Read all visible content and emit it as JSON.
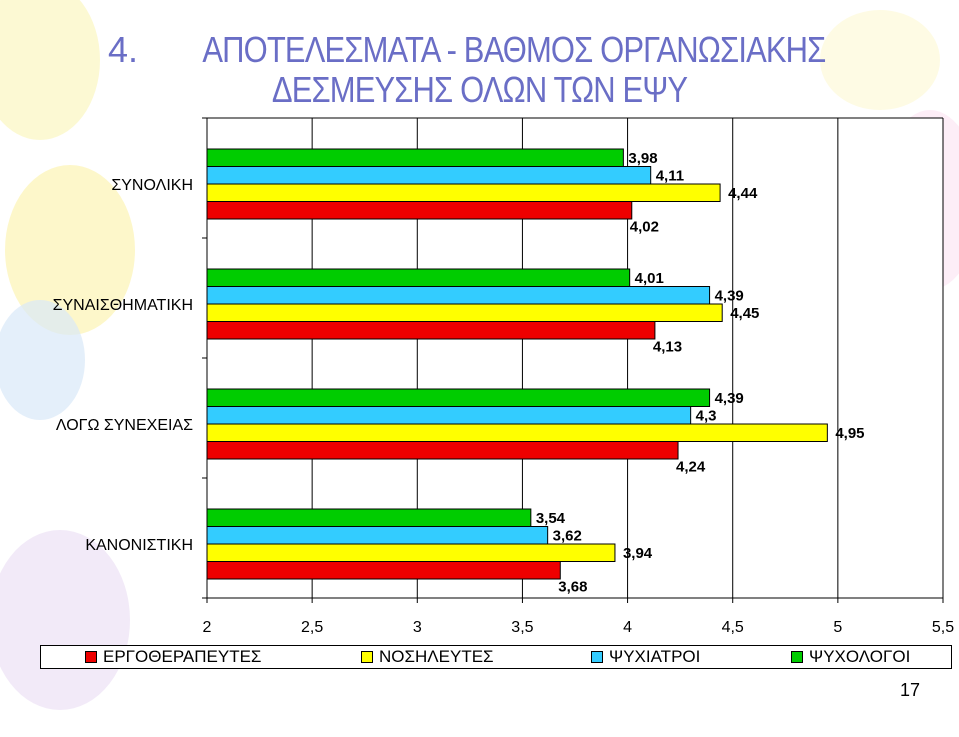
{
  "slide": {
    "title_number": "4.",
    "title_line1": "ΑΠΟΤΕΛΕΣΜΑΤΑ - ΒΑΘΜΟΣ ΟΡΓΑΝΩΣΙΑΚΗΣ",
    "title_line2": "ΔΕΣΜΕΥΣΗΣ ΟΛΩΝ ΤΩΝ ΕΨΥ",
    "page_number": "17"
  },
  "chart_data": {
    "type": "bar",
    "orientation": "horizontal",
    "categories": [
      "ΣΥΝΟΛΙΚΗ",
      "ΣΥΝΑΙΣΘΗΜΑΤΙΚΗ",
      "ΛΟΓΩ ΣΥΝΕΧΕΙΑΣ",
      "ΚΑΝΟΝΙΣΤΙΚΗ"
    ],
    "series": [
      {
        "name": "ΨΥΧΟΛΟΓΟΙ",
        "color": "#00cc00",
        "values": [
          3.98,
          4.01,
          4.39,
          3.54
        ],
        "labels": [
          "3,98",
          "4,01",
          "4,39",
          "3,54"
        ]
      },
      {
        "name": "ΨΥΧΙΑΤΡΟΙ",
        "color": "#33ccff",
        "values": [
          4.11,
          4.39,
          4.3,
          3.62
        ],
        "labels": [
          "4,11",
          "4,39",
          "4,3",
          "3,62"
        ]
      },
      {
        "name": "ΝΟΣΗΛΕΥΤΕΣ",
        "color": "#ffff00",
        "values": [
          4.44,
          4.45,
          4.95,
          3.94
        ],
        "labels": [
          "4,44",
          "4,45",
          "4,95",
          "3,94"
        ]
      },
      {
        "name": "ΕΡΓΟΘΕΡΑΠΕΥΤΕΣ",
        "color": "#ee0000",
        "values": [
          4.02,
          4.13,
          4.24,
          3.68
        ],
        "labels": [
          "4,02",
          "4,13",
          "4,24",
          "3,68"
        ]
      }
    ],
    "xlim": [
      2,
      5.5
    ],
    "xticks": [
      2,
      2.5,
      3,
      3.5,
      4,
      4.5,
      5,
      5.5
    ],
    "xtick_labels": [
      "2",
      "2,5",
      "3",
      "3,5",
      "4",
      "4,5",
      "5",
      "5,5"
    ],
    "grid": "vertical",
    "legend_position": "bottom",
    "legend_order": [
      "ΕΡΓΟΘΕΡΑΠΕΥΤΕΣ",
      "ΝΟΣΗΛΕΥΤΕΣ",
      "ΨΥΧΙΑΤΡΟΙ",
      "ΨΥΧΟΛΟΓΟΙ"
    ]
  }
}
